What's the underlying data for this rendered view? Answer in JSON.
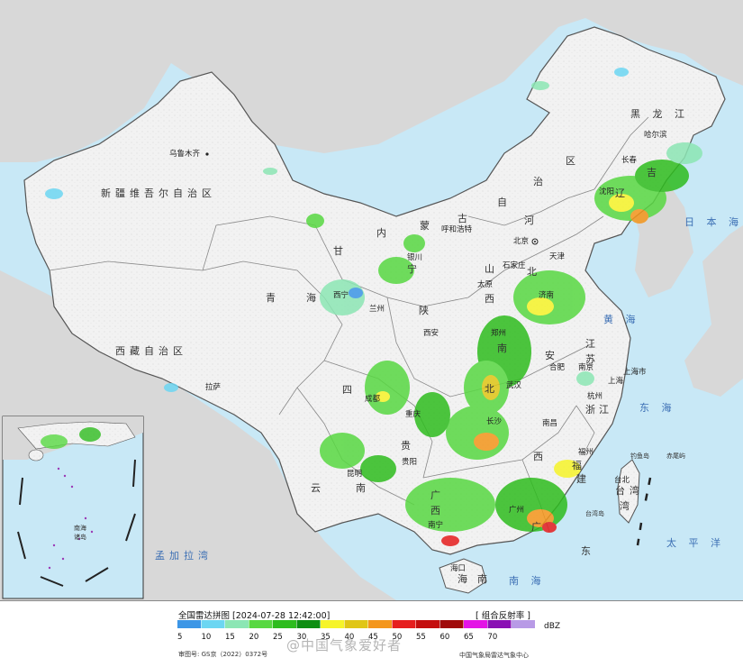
{
  "footer": {
    "title": "全国雷达拼图 [2024-07-28 12:42:00]",
    "product": "[ 组合反射率 ]",
    "unit": "dBZ",
    "approval": "审图号: GS京（2022）0372号",
    "center": "中国气象局雷达气象中心",
    "watermark": "@中国气象爱好者"
  },
  "legend": {
    "values": [
      "5",
      "10",
      "15",
      "20",
      "25",
      "30",
      "35",
      "40",
      "45",
      "50",
      "55",
      "60",
      "65",
      "70"
    ],
    "colors": [
      "#3c96e6",
      "#6cd6f2",
      "#8ce6b4",
      "#58d842",
      "#2ebc1e",
      "#0e8e12",
      "#f6f42a",
      "#e0c616",
      "#f4961c",
      "#e61e1e",
      "#c40e0e",
      "#a00a0a",
      "#e414e6",
      "#8a10b4",
      "#b89ae6"
    ]
  },
  "map_labels": {
    "xinjiang": "新疆维吾尔自治区",
    "xizang": "西藏自治区",
    "qinghai_1": "青",
    "qinghai_2": "海",
    "neimenggu_1": "内",
    "neimenggu_2": "蒙",
    "neimenggu_3": "古",
    "neimenggu_4": "自",
    "neimenggu_5": "治",
    "neimenggu_6": "区",
    "gansu": "甘",
    "sichuan": "四",
    "yunnan_1": "云",
    "yunnan_2": "南",
    "heilongjiang": "黑 龙 江",
    "jilin": "吉",
    "liaoning": "辽",
    "hebei": "河",
    "hebei_2": "北",
    "shanxi": "山",
    "shanxi_2": "西",
    "shaanxi": "陕",
    "ningxia": "宁",
    "henan": "南",
    "hubei": "北",
    "anhui": "安",
    "jiangsu": "江",
    "jiangsu_2": "苏",
    "zhejiang": "浙",
    "zhejiang_2": "江",
    "jiangxi": "西",
    "fujian": "福",
    "fujian_2": "建",
    "guangdong": "广",
    "guangdong_2": "东",
    "guangxi": "广",
    "guangxi_2": "西",
    "hainan": "海",
    "hainan_2": "南",
    "guizhou": "贵",
    "chongqing": "重庆",
    "taiwan": "台湾",
    "taiwan_2": "湾",
    "taiwan_3": "台湾岛",
    "sea_huanghai": "黄 海",
    "sea_donghai": "东 海",
    "sea_nanhai": "南 海",
    "sea_riben": "日 本 海",
    "sea_taiping": "太 平 洋",
    "sea_mengjiala": "孟加拉湾",
    "diaoyu": "钓鱼岛",
    "chiwei": "赤尾屿",
    "city_wulumuqi": "乌鲁木齐",
    "city_lasa": "拉萨",
    "city_xining": "西宁",
    "city_lanzhou": "兰州",
    "city_yinchuan": "银川",
    "city_huhehaote": "呼和浩特",
    "city_beijing": "北京",
    "city_tianjin": "天津",
    "city_shijiazhuang": "石家庄",
    "city_taiyuan": "太原",
    "city_xian": "西安",
    "city_zhengzhou": "郑州",
    "city_jinan": "济南",
    "city_haerbin": "哈尔滨",
    "city_changchun": "长春",
    "city_shenyang": "沈阳",
    "city_chengdu": "成都",
    "city_chongqing": "重庆",
    "city_wuhan": "武汉",
    "city_hefei": "合肥",
    "city_nanjing": "南京",
    "city_shanghai": "上海",
    "city_shanghaishi": "上海市",
    "city_hangzhou": "杭州",
    "city_nanchang": "南昌",
    "city_changsha": "长沙",
    "city_fuzhou": "福州",
    "city_taibei": "台北",
    "city_guiyang": "贵阳",
    "city_kunming": "昆明",
    "city_nanning": "南宁",
    "city_guangzhou": "广州",
    "city_haikou": "海口",
    "inset_label": "南海",
    "inset_label2": "诸岛"
  }
}
